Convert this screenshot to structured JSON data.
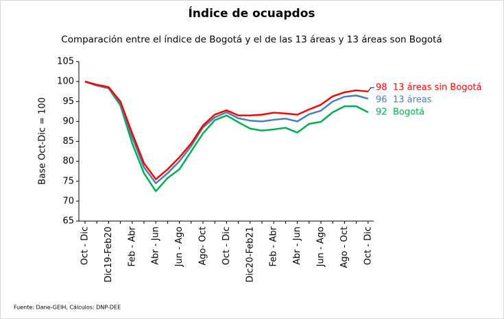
{
  "chart_data": {
    "type": "line",
    "title": "Índice de ocuapdos",
    "subtitle": "Comparación entre el índice de Bogotá y el de las 13 áreas y 13 áreas son Bogotá",
    "y_label": "Base Oct-Dic = 100",
    "source": "Fuente: Dane-GEIH, Cálculos: DNP-DEE",
    "categories": [
      "Oct - Dic",
      null,
      "Dic19-Feb20",
      null,
      "Feb - Abr",
      null,
      "Abr - Jun",
      null,
      "Jun - Ago",
      null,
      "Ago- Oct",
      null,
      "Oct - Dic",
      null,
      "Dic20-Feb21",
      null,
      "Feb - Abr",
      null,
      "Abr - Jun",
      null,
      "Jun - Ago",
      null,
      "Ago - Oct",
      null,
      "Oct - Dic"
    ],
    "ylim": [
      65,
      105
    ],
    "yticks": [
      65,
      70,
      75,
      80,
      85,
      90,
      95,
      100,
      105
    ],
    "series": [
      {
        "name": "13 áreas sin Bogotá",
        "color": "#ff0000",
        "values": [
          100,
          99.2,
          98.6,
          95,
          87,
          79.5,
          75.5,
          78,
          81,
          84.5,
          89,
          91.7,
          92.8,
          91.5,
          91.5,
          91.7,
          92.2,
          92,
          91.7,
          93,
          94.2,
          96.3,
          97.3,
          97.8,
          97.5
        ],
        "value_labels": [
          null,
          null,
          null,
          null,
          null,
          null,
          null,
          null,
          null,
          null,
          null,
          null,
          null,
          null,
          null,
          null,
          null,
          null,
          null,
          null,
          null,
          null,
          null,
          null,
          "98"
        ]
      },
      {
        "name": "13 áreas",
        "color": "#4a7ebb",
        "values": [
          100,
          99,
          98.4,
          94.5,
          86,
          78.5,
          74.5,
          77,
          80,
          83.8,
          88.5,
          91,
          92.3,
          90.8,
          90.2,
          90,
          90.4,
          90.7,
          90,
          91.8,
          92.7,
          95,
          96.2,
          96.5,
          95.7
        ],
        "value_labels": [
          null,
          null,
          null,
          null,
          null,
          null,
          null,
          null,
          null,
          null,
          null,
          null,
          null,
          null,
          null,
          null,
          null,
          null,
          null,
          null,
          null,
          null,
          null,
          null,
          "96"
        ]
      },
      {
        "name": "Bogotá",
        "color": "#00b050",
        "values": [
          100,
          99,
          98.3,
          94,
          84.5,
          77,
          72.5,
          75.8,
          78,
          82.5,
          87,
          90.3,
          91.5,
          89.8,
          88.2,
          87.7,
          88,
          88.4,
          87.2,
          89.4,
          89.9,
          92.3,
          93.8,
          93.8,
          92.3
        ],
        "value_labels": [
          null,
          null,
          null,
          null,
          null,
          null,
          null,
          null,
          null,
          null,
          null,
          null,
          null,
          null,
          null,
          null,
          null,
          null,
          null,
          null,
          null,
          null,
          null,
          null,
          "92"
        ]
      }
    ]
  }
}
